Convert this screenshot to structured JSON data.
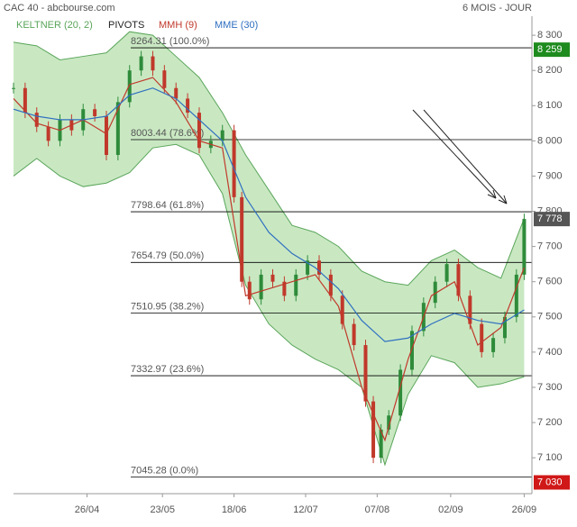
{
  "chart_data": {
    "type": "candlestick",
    "title": "CAC 40 - abcbourse.com",
    "period": "6 MOIS - JOUR",
    "xlim": [
      0,
      134
    ],
    "ylim": [
      6998,
      8354
    ],
    "xticks": [
      {
        "value": 19,
        "label": "26/04"
      },
      {
        "value": 38.5,
        "label": "23/05"
      },
      {
        "value": 57,
        "label": "18/06"
      },
      {
        "value": 75.5,
        "label": "12/07"
      },
      {
        "value": 94,
        "label": "07/08"
      },
      {
        "value": 113,
        "label": "02/09"
      },
      {
        "value": 132,
        "label": "26/09"
      }
    ],
    "yticks": [
      {
        "value": 7100,
        "label": "7 100"
      },
      {
        "value": 7200,
        "label": "7 200"
      },
      {
        "value": 7300,
        "label": "7 300"
      },
      {
        "value": 7400,
        "label": "7 400"
      },
      {
        "value": 7500,
        "label": "7 500"
      },
      {
        "value": 7600,
        "label": "7 600"
      },
      {
        "value": 7700,
        "label": "7 700"
      },
      {
        "value": 7800,
        "label": "7 800"
      },
      {
        "value": 7900,
        "label": "7 900"
      },
      {
        "value": 8000,
        "label": "8 000"
      },
      {
        "value": 8100,
        "label": "8 100"
      },
      {
        "value": 8200,
        "label": "8 200"
      },
      {
        "value": 8300,
        "label": "8 300"
      }
    ],
    "price": {
      "x": [
        0,
        3,
        6,
        9,
        12,
        15,
        18,
        21,
        24,
        27,
        30,
        33,
        36,
        39,
        42,
        45,
        48,
        51,
        54,
        57,
        59,
        61,
        64,
        67,
        70,
        73,
        76,
        79,
        82,
        85,
        88,
        91,
        93,
        95,
        97,
        100,
        103,
        106,
        109,
        112,
        115,
        118,
        121,
        124,
        127,
        130,
        132
      ],
      "values": [
        8150,
        8080,
        8040,
        8000,
        8060,
        8030,
        8090,
        8070,
        7960,
        8110,
        8200,
        8240,
        8200,
        8150,
        8120,
        8080,
        7980,
        8000,
        8030,
        7840,
        7600,
        7550,
        7620,
        7600,
        7560,
        7620,
        7660,
        7620,
        7560,
        7480,
        7420,
        7260,
        7100,
        7180,
        7220,
        7350,
        7460,
        7540,
        7600,
        7650,
        7560,
        7480,
        7400,
        7440,
        7500,
        7620,
        7778
      ],
      "up_color": "#2e8b3a",
      "down_color": "#c0392b"
    },
    "keltner": {
      "name": "KELTNER (20, 2)",
      "color": "#5aa55a",
      "fill": "#c9e8c2",
      "x": [
        0,
        6,
        12,
        18,
        24,
        30,
        36,
        42,
        48,
        54,
        60,
        66,
        72,
        78,
        84,
        90,
        96,
        102,
        108,
        114,
        120,
        126,
        132
      ],
      "upper": [
        8280,
        8270,
        8230,
        8240,
        8250,
        8310,
        8300,
        8240,
        8180,
        8080,
        7960,
        7860,
        7760,
        7740,
        7700,
        7630,
        7600,
        7590,
        7660,
        7690,
        7640,
        7610,
        7780
      ],
      "lower": [
        7900,
        7950,
        7900,
        7870,
        7880,
        7910,
        7980,
        7990,
        7960,
        7850,
        7590,
        7480,
        7420,
        7380,
        7350,
        7300,
        7080,
        7280,
        7390,
        7370,
        7300,
        7310,
        7330
      ]
    },
    "pivots": {
      "name": "PIVOTS",
      "color": "#000000",
      "levels": [
        {
          "value": 8264.31,
          "label": "8264.31 (100.0%)"
        },
        {
          "value": 8003.44,
          "label": "8003.44 (78.6%)"
        },
        {
          "value": 7798.64,
          "label": "7798.64 (61.8%)"
        },
        {
          "value": 7654.79,
          "label": "7654.79 (50.0%)"
        },
        {
          "value": 7510.95,
          "label": "7510.95 (38.2%)"
        },
        {
          "value": 7332.97,
          "label": "7332.97 (23.6%)"
        },
        {
          "value": 7045.28,
          "label": "7045.28 (0.0%)"
        }
      ]
    },
    "series": [
      {
        "name": "MMH (9)",
        "color": "#c0392b",
        "x": [
          0,
          6,
          12,
          18,
          24,
          30,
          36,
          42,
          48,
          54,
          60,
          66,
          72,
          78,
          84,
          90,
          96,
          102,
          108,
          114,
          120,
          126,
          132
        ],
        "values": [
          8120,
          8050,
          8030,
          8060,
          8020,
          8160,
          8180,
          8110,
          8000,
          7980,
          7560,
          7580,
          7600,
          7620,
          7530,
          7300,
          7150,
          7380,
          7560,
          7600,
          7420,
          7470,
          7640
        ]
      },
      {
        "name": "MME (30)",
        "color": "#2f6fc0",
        "x": [
          0,
          6,
          12,
          18,
          24,
          30,
          36,
          42,
          48,
          54,
          60,
          66,
          72,
          78,
          84,
          90,
          96,
          102,
          108,
          114,
          120,
          126,
          132
        ],
        "values": [
          8090,
          8070,
          8060,
          8060,
          8070,
          8130,
          8150,
          8120,
          8060,
          8000,
          7840,
          7740,
          7680,
          7640,
          7580,
          7490,
          7430,
          7440,
          7480,
          7510,
          7490,
          7480,
          7520
        ]
      }
    ],
    "price_tags": [
      {
        "value": 8259,
        "label": "8 259",
        "color": "#1e8b1e"
      },
      {
        "value": 7778,
        "label": "7 778",
        "color": "#555555"
      },
      {
        "value": 7030,
        "label": "7 030",
        "color": "#d01818"
      }
    ]
  }
}
